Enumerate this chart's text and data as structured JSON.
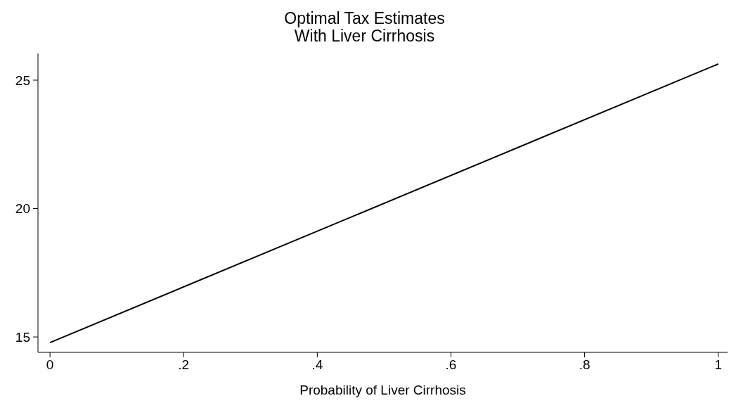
{
  "chart_data": {
    "type": "line",
    "title": "Optimal Tax Estimates\nWith Liver Cirrhosis",
    "xlabel": "Probability of Liver Cirrhosis",
    "x": [
      0,
      1
    ],
    "series": [
      {
        "color": "#000000",
        "values": [
          14.78,
          25.63
        ]
      }
    ],
    "xlim": [
      -0.018,
      1.014
    ],
    "ylim": [
      14.4,
      26.04
    ],
    "xticks": [
      0,
      {
        "value": 0.2,
        "label": ".2"
      },
      {
        "value": 0.4,
        "label": ".4"
      },
      {
        "value": 0.6,
        "label": ".6"
      },
      {
        "value": 0.8,
        "label": ".8"
      },
      1
    ],
    "yticks": [
      15,
      20,
      25
    ],
    "grid": false,
    "legend": false,
    "marker": "none",
    "line_style": "solid"
  }
}
